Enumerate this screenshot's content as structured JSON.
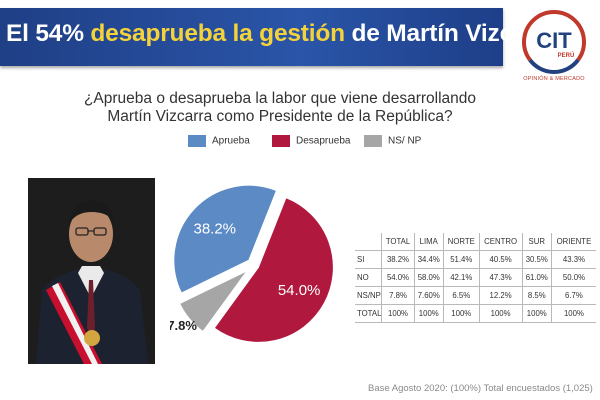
{
  "headline": {
    "pre": "El 54% ",
    "highlight": "desaprueba la gestión",
    "post": " de Martín Vizcarra"
  },
  "logo": {
    "text": "CIT",
    "sub": "PERÚ",
    "tagline": "OPINIÓN & MERCADO"
  },
  "question": "¿Aprueba o desaprueba la labor que viene desarrollando Martín Vizcarra como Presidente de la República?",
  "legend": [
    {
      "label": "Aprueba",
      "color": "#5b8ac5"
    },
    {
      "label": "Desaprueba",
      "color": "#b0183e"
    },
    {
      "label": "NS/ NP",
      "color": "#a6a6a6"
    }
  ],
  "chart_data": {
    "type": "pie",
    "slices": [
      {
        "label": "Desaprueba",
        "value": 54.0,
        "display": "54.0%",
        "color": "#b0183e"
      },
      {
        "label": "NS/ NP",
        "value": 7.8,
        "display": "7.8%",
        "color": "#a6a6a6"
      },
      {
        "label": "Aprueba",
        "value": 38.2,
        "display": "38.2%",
        "color": "#5b8ac5"
      }
    ]
  },
  "table": {
    "header": [
      "",
      "TOTAL",
      "LIMA",
      "NORTE",
      "CENTRO",
      "SUR",
      "ORIENTE"
    ],
    "rows": [
      [
        "SI",
        "38.2%",
        "34.4%",
        "51.4%",
        "40.5%",
        "30.5%",
        "43.3%"
      ],
      [
        "NO",
        "54.0%",
        "58.0%",
        "42.1%",
        "47.3%",
        "61.0%",
        "50.0%"
      ],
      [
        "NS/NP",
        "7.8%",
        "7.60%",
        "6.5%",
        "12.2%",
        "8.5%",
        "6.7%"
      ],
      [
        "TOTAL",
        "100%",
        "100%",
        "100%",
        "100%",
        "100%",
        "100%"
      ]
    ]
  },
  "footnote": "Base Agosto 2020: (100%) Total encuestados (1,025)"
}
